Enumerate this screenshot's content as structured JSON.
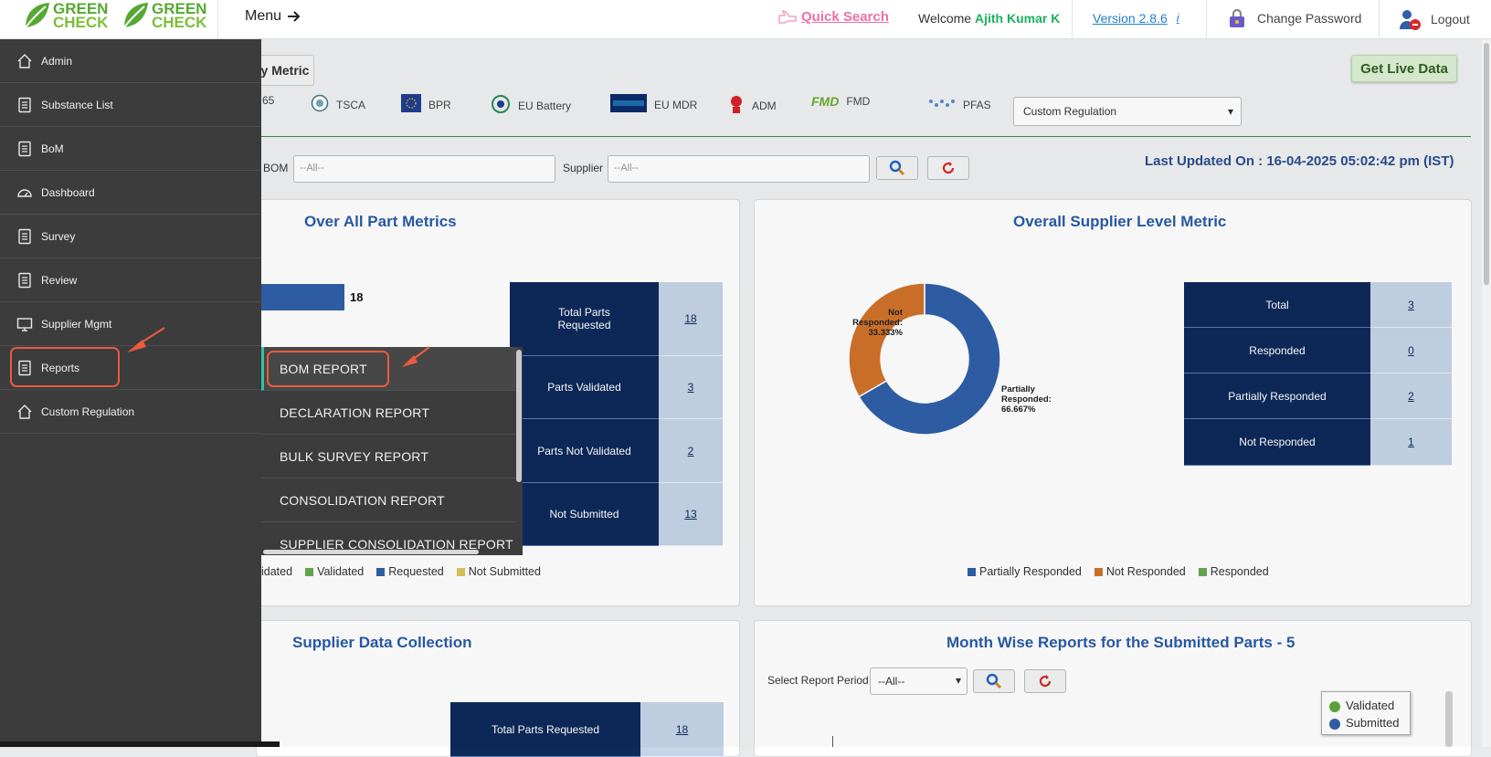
{
  "header": {
    "logo_text_line1": "GREEN",
    "logo_text_line2": "CHECK",
    "menu_label": "Menu",
    "quick_search": "Quick Search",
    "welcome_prefix": "Welcome",
    "user_name": "Ajith Kumar K",
    "version": "Version 2.8.6",
    "version_info": "i",
    "change_password": "Change Password",
    "logout": "Logout"
  },
  "sidebar": {
    "items": [
      {
        "label": "Admin",
        "icon": "home-icon"
      },
      {
        "label": "Substance List",
        "icon": "document-icon"
      },
      {
        "label": "BoM",
        "icon": "document-icon"
      },
      {
        "label": "Dashboard",
        "icon": "gauge-icon"
      },
      {
        "label": "Survey",
        "icon": "document-icon"
      },
      {
        "label": "Review",
        "icon": "document-icon"
      },
      {
        "label": "Supplier Mgmt",
        "icon": "monitor-icon"
      },
      {
        "label": "Reports",
        "icon": "document-icon"
      },
      {
        "label": "Custom Regulation",
        "icon": "home-icon"
      }
    ]
  },
  "submenu": {
    "items": [
      {
        "label": "BOM REPORT"
      },
      {
        "label": "DECLARATION REPORT"
      },
      {
        "label": "BULK SURVEY REPORT"
      },
      {
        "label": "CONSOLIDATION REPORT"
      },
      {
        "label": "SUPPLIER CONSOLIDATION REPORT"
      }
    ]
  },
  "dashboard": {
    "metric_button": "y Metric",
    "get_live_data": "Get Live Data",
    "regulations": [
      "65",
      "TSCA",
      "BPR",
      "EU Battery",
      "EU MDR",
      "ADM",
      "FMD",
      "PFAS"
    ],
    "regulation_select": "Custom Regulation",
    "filters": {
      "bom_label": "BOM",
      "bom_placeholder": "--All--",
      "supplier_label": "Supplier",
      "supplier_placeholder": "--All--"
    },
    "last_updated": "Last Updated On : 16-04-2025 05:02:42 pm (IST)",
    "part_metrics": {
      "title": "Over All Part Metrics",
      "bar_value": "18",
      "rows": [
        {
          "label": "Total Parts Requested",
          "value": "18"
        },
        {
          "label": "Parts Validated",
          "value": "3"
        },
        {
          "label": "Parts Not Validated",
          "value": "2"
        },
        {
          "label": "Not Submitted",
          "value": "13"
        }
      ],
      "legend": [
        "idated",
        "Validated",
        "Requested",
        "Not Submitted"
      ]
    },
    "supplier_metric": {
      "title": "Overall Supplier Level Metric",
      "rows": [
        {
          "label": "Total",
          "value": "3"
        },
        {
          "label": "Responded",
          "value": "0"
        },
        {
          "label": "Partially Responded",
          "value": "2"
        },
        {
          "label": "Not Responded",
          "value": "1"
        }
      ],
      "legend": [
        "Partially Responded",
        "Not Responded",
        "Responded"
      ]
    },
    "supplier_collection": {
      "title": "Supplier Data Collection",
      "rows": [
        {
          "label": "Total Parts Requested",
          "value": "18"
        }
      ]
    },
    "month_wise": {
      "title": "Month Wise Reports for the Submitted Parts - 5",
      "period_label": "Select Report Period",
      "period_value": "--All--",
      "legend": [
        "Validated",
        "Submitted"
      ]
    }
  },
  "chart_data": {
    "type": "pie",
    "categories": [
      "Partially Responded",
      "Not Responded",
      "Responded"
    ],
    "values": [
      66.667,
      33.333,
      0
    ],
    "labels": [
      "Partially Responded: 66.667%",
      "Not Responded: 33.333%"
    ],
    "colors": [
      "#2f5fa8",
      "#d0722a",
      "#6aa84f"
    ]
  }
}
